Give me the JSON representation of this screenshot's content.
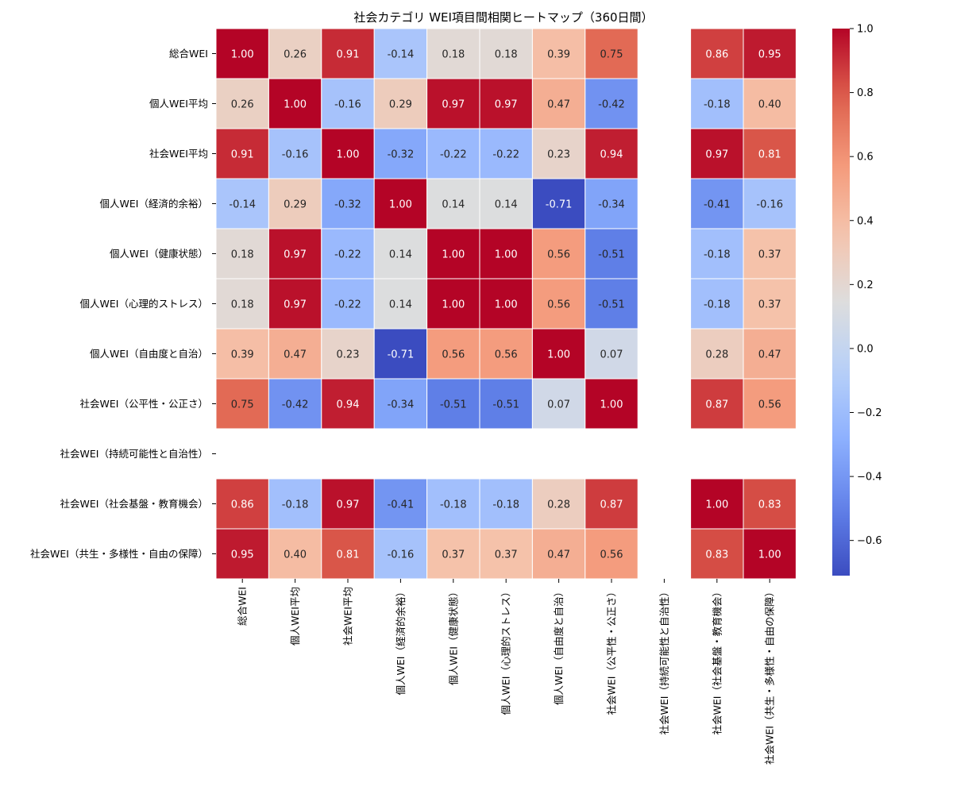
{
  "chart_data": {
    "type": "heatmap",
    "title": "社会カテゴリ WEI項目間相関ヒートマップ（360日間）",
    "xlabel": "",
    "ylabel": "",
    "colormap": "coolwarm",
    "vmin": -0.71,
    "vmax": 1.0,
    "annotation_format": "0.00",
    "row_labels": [
      "総合WEI",
      "個人WEI平均",
      "社会WEI平均",
      "個人WEI（経済的余裕）",
      "個人WEI（健康状態）",
      "個人WEI（心理的ストレス）",
      "個人WEI（自由度と自治）",
      "社会WEI（公平性・公正さ）",
      "社会WEI（持続可能性と自治性）",
      "社会WEI（社会基盤・教育機会）",
      "社会WEI（共生・多様性・自由の保障）"
    ],
    "col_labels": [
      "総合WEI",
      "個人WEI平均",
      "社会WEI平均",
      "個人WEI（経済的余裕）",
      "個人WEI（健康状態）",
      "個人WEI（心理的ストレス）",
      "個人WEI（自由度と自治）",
      "社会WEI（公平性・公正さ）",
      "社会WEI（持続可能性と自治性）",
      "社会WEI（社会基盤・教育機会）",
      "社会WEI（共生・多様性・自由の保障）"
    ],
    "values": [
      [
        1.0,
        0.26,
        0.91,
        -0.14,
        0.18,
        0.18,
        0.39,
        0.75,
        null,
        0.86,
        0.95
      ],
      [
        0.26,
        1.0,
        -0.16,
        0.29,
        0.97,
        0.97,
        0.47,
        -0.42,
        null,
        -0.18,
        0.4
      ],
      [
        0.91,
        -0.16,
        1.0,
        -0.32,
        -0.22,
        -0.22,
        0.23,
        0.94,
        null,
        0.97,
        0.81
      ],
      [
        -0.14,
        0.29,
        -0.32,
        1.0,
        0.14,
        0.14,
        -0.71,
        -0.34,
        null,
        -0.41,
        -0.16
      ],
      [
        0.18,
        0.97,
        -0.22,
        0.14,
        1.0,
        1.0,
        0.56,
        -0.51,
        null,
        -0.18,
        0.37
      ],
      [
        0.18,
        0.97,
        -0.22,
        0.14,
        1.0,
        1.0,
        0.56,
        -0.51,
        null,
        -0.18,
        0.37
      ],
      [
        0.39,
        0.47,
        0.23,
        -0.71,
        0.56,
        0.56,
        1.0,
        0.07,
        null,
        0.28,
        0.47
      ],
      [
        0.75,
        -0.42,
        0.94,
        -0.34,
        -0.51,
        -0.51,
        0.07,
        1.0,
        null,
        0.87,
        0.56
      ],
      [
        null,
        null,
        null,
        null,
        null,
        null,
        null,
        null,
        null,
        null,
        null
      ],
      [
        0.86,
        -0.18,
        0.97,
        -0.41,
        -0.18,
        -0.18,
        0.28,
        0.87,
        null,
        1.0,
        0.83
      ],
      [
        0.95,
        0.4,
        0.81,
        -0.16,
        0.37,
        0.37,
        0.47,
        0.56,
        null,
        0.83,
        1.0
      ]
    ],
    "colorbar": {
      "ticks": [
        1.0,
        0.8,
        0.6,
        0.4,
        0.2,
        0.0,
        -0.2,
        -0.4,
        -0.6
      ],
      "tick_labels": [
        "1.0",
        "0.8",
        "0.6",
        "0.4",
        "0.2",
        "0.0",
        "−0.2",
        "−0.4",
        "−0.6"
      ]
    }
  }
}
